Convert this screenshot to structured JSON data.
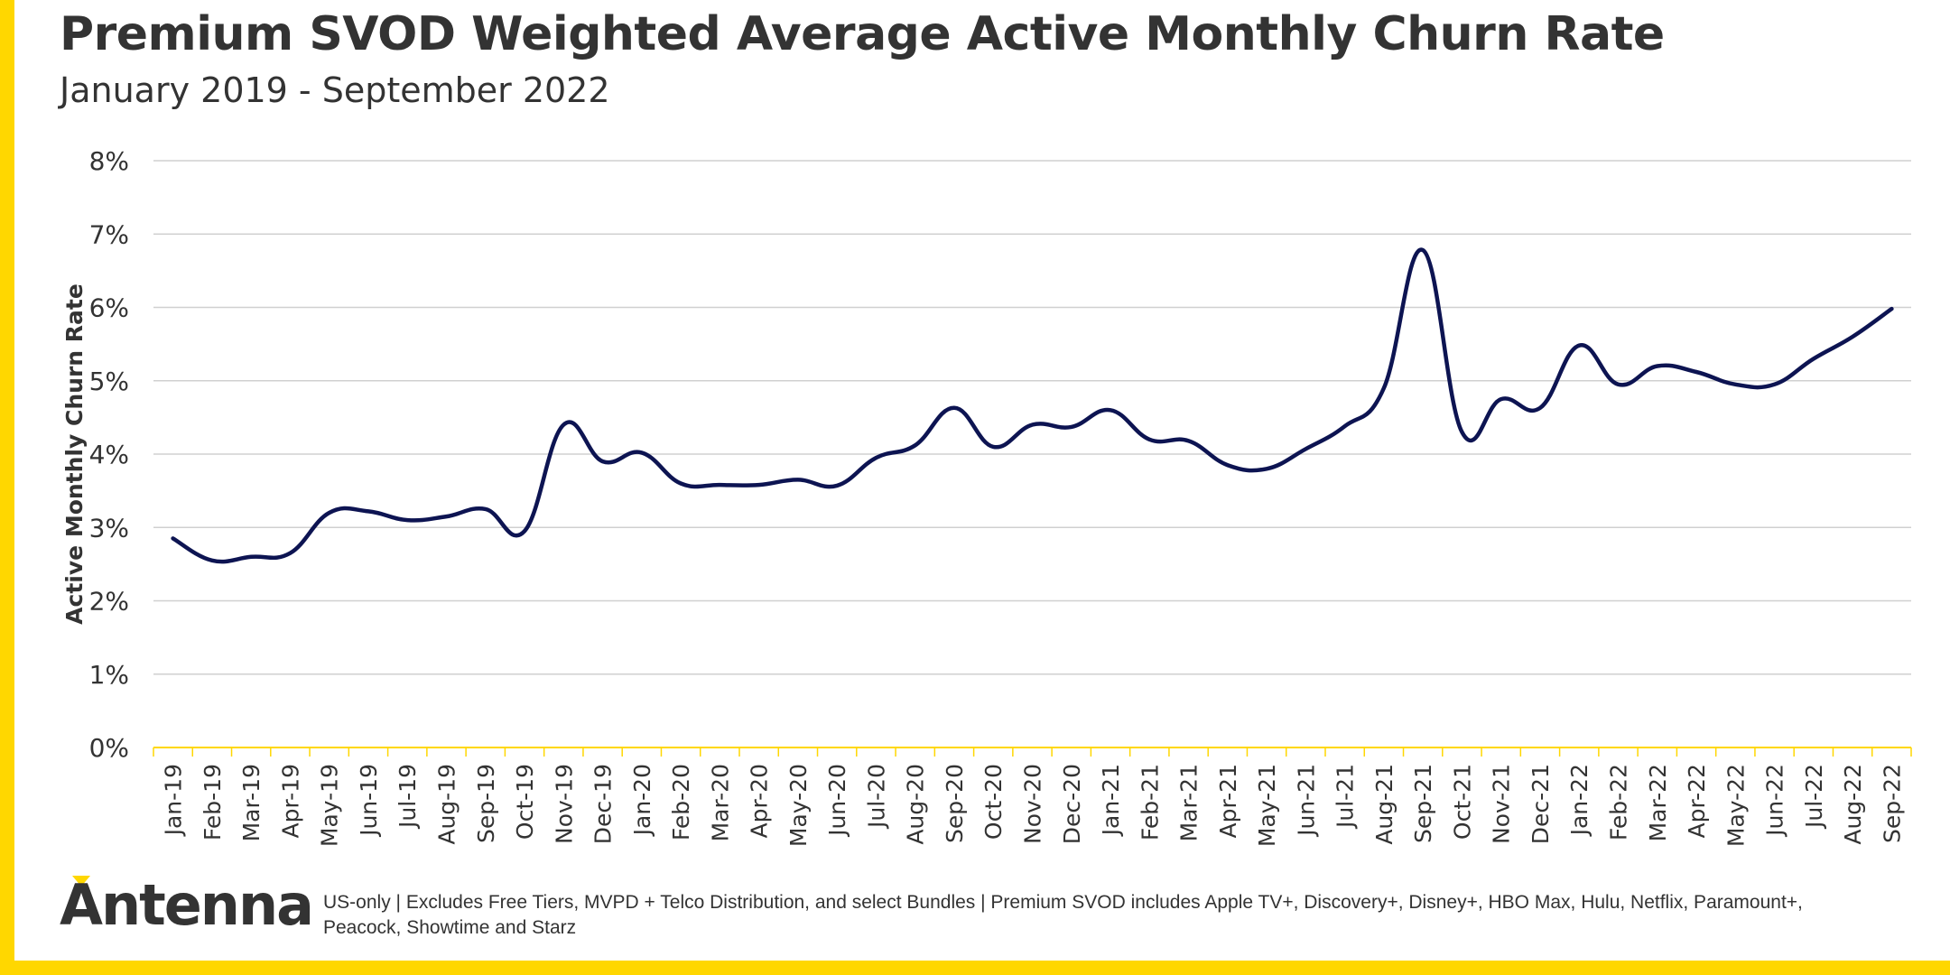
{
  "colors": {
    "accent": "#FFD700",
    "line": "#0D1452",
    "grid": "#D0D0D0",
    "text": "#333333",
    "axis": "#FFD700"
  },
  "brand": {
    "logo_text": "Antenna"
  },
  "footnote": "US-only | Excludes Free Tiers, MVPD + Telco Distribution, and select Bundles | Premium SVOD includes Apple TV+, Discovery+, Disney+, HBO Max, Hulu, Netflix, Paramount+, Peacock, Showtime and Starz",
  "chart_data": {
    "type": "line",
    "title": "Premium SVOD Weighted Average Active Monthly Churn Rate",
    "subtitle": "January 2019 - September 2022",
    "xlabel": "",
    "ylabel": "Active Monthly Churn Rate",
    "ylim": [
      0,
      8
    ],
    "yticks": [
      0,
      1,
      2,
      3,
      4,
      5,
      6,
      7,
      8
    ],
    "ytick_labels": [
      "0%",
      "1%",
      "2%",
      "3%",
      "4%",
      "5%",
      "6%",
      "7%",
      "8%"
    ],
    "grid": true,
    "categories": [
      "Jan-19",
      "Feb-19",
      "Mar-19",
      "Apr-19",
      "May-19",
      "Jun-19",
      "Jul-19",
      "Aug-19",
      "Sep-19",
      "Oct-19",
      "Nov-19",
      "Dec-19",
      "Jan-20",
      "Feb-20",
      "Mar-20",
      "Apr-20",
      "May-20",
      "Jun-20",
      "Jul-20",
      "Aug-20",
      "Sep-20",
      "Oct-20",
      "Nov-20",
      "Dec-20",
      "Jan-21",
      "Feb-21",
      "Mar-21",
      "Apr-21",
      "May-21",
      "Jun-21",
      "Jul-21",
      "Aug-21",
      "Sep-21",
      "Oct-21",
      "Nov-21",
      "Dec-21",
      "Jan-22",
      "Feb-22",
      "Mar-22",
      "Apr-22",
      "May-22",
      "Jun-22",
      "Jul-22",
      "Aug-22",
      "Sep-22"
    ],
    "series": [
      {
        "name": "Active Monthly Churn Rate",
        "values": [
          2.85,
          2.55,
          2.6,
          2.65,
          3.2,
          3.22,
          3.1,
          3.15,
          3.25,
          2.95,
          4.4,
          3.9,
          4.02,
          3.6,
          3.58,
          3.58,
          3.65,
          3.57,
          3.95,
          4.12,
          4.63,
          4.1,
          4.4,
          4.37,
          4.6,
          4.2,
          4.18,
          3.85,
          3.8,
          4.07,
          4.38,
          4.9,
          6.78,
          4.3,
          4.75,
          4.63,
          5.48,
          4.95,
          5.2,
          5.12,
          4.95,
          4.95,
          5.3,
          5.6,
          5.98
        ]
      }
    ]
  }
}
